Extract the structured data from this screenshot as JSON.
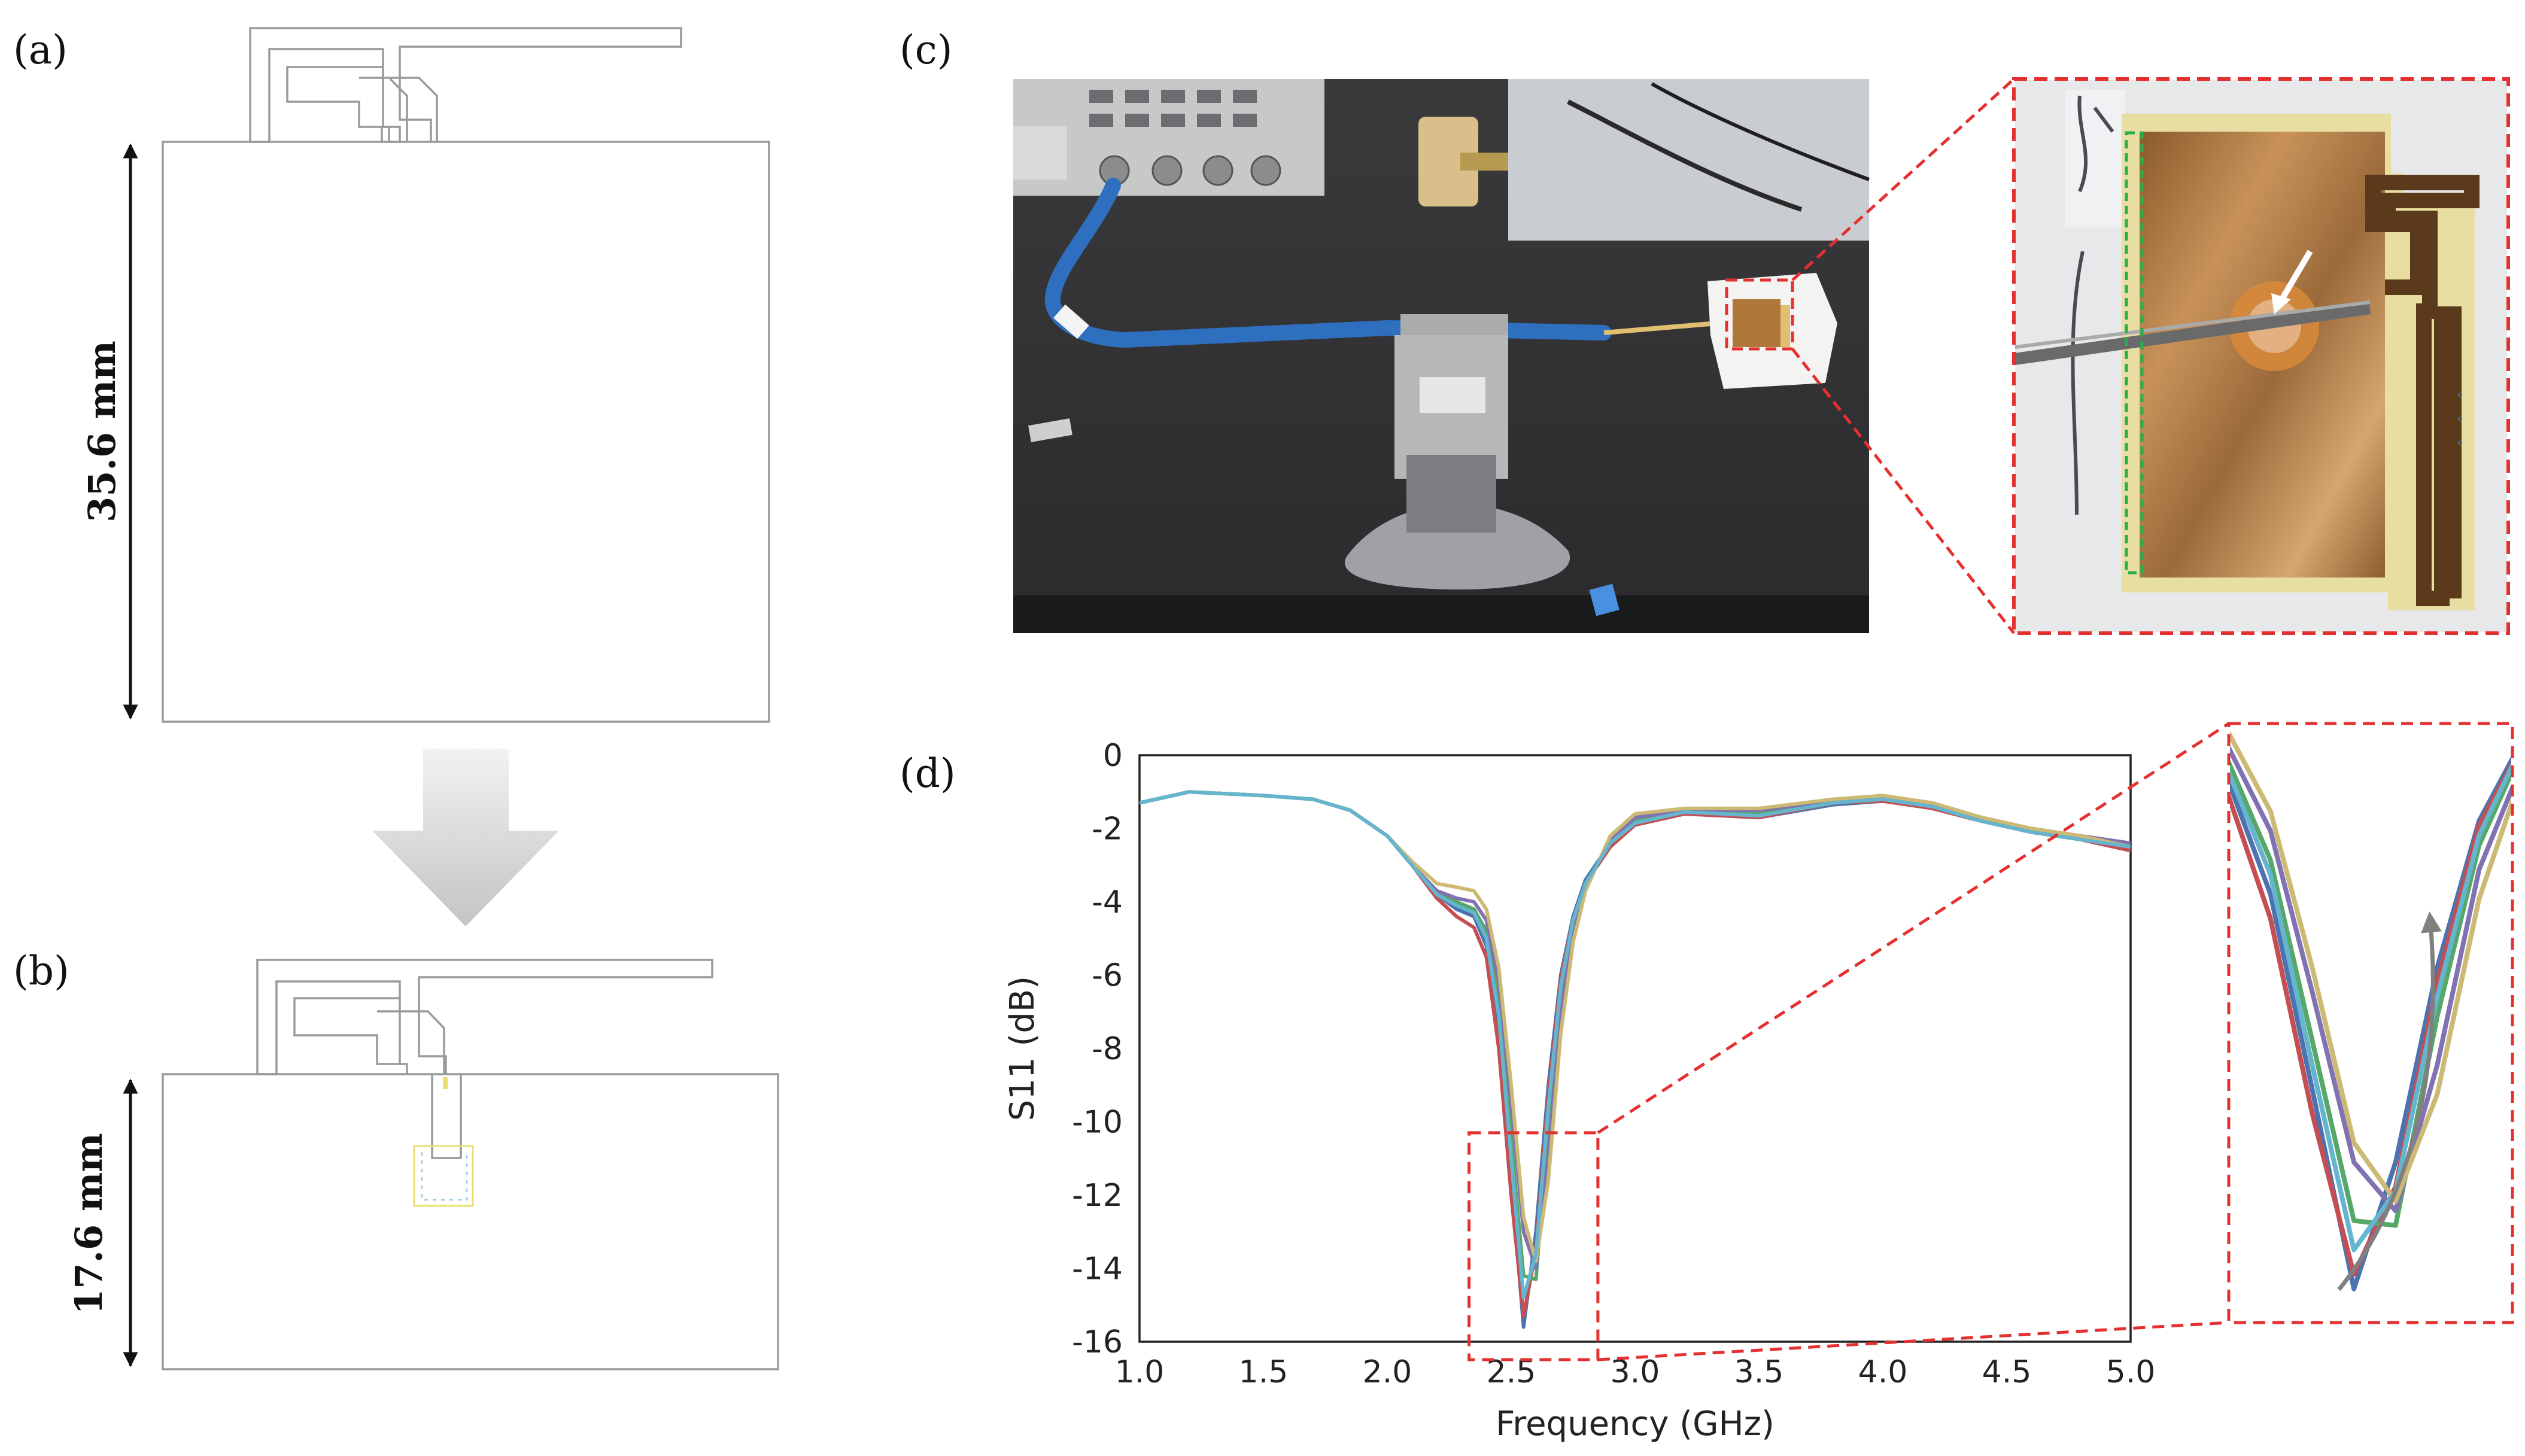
{
  "panels": {
    "a": {
      "label": "(a)",
      "dimension": "35.6 mm"
    },
    "b": {
      "label": "(b)",
      "dimension": "17.6 mm"
    },
    "c": {
      "label": "(c)"
    },
    "d": {
      "label": "(d)"
    }
  },
  "colors": {
    "series": [
      "#4c72b0",
      "#c44e52",
      "#55a868",
      "#8172b2",
      "#ccb974",
      "#64b5cd"
    ],
    "zoom_box": "#e53030",
    "arrow": "#808080"
  },
  "chart_data": {
    "type": "line",
    "title": "",
    "xlabel": "Frequency (GHz)",
    "ylabel": "S11 (dB)",
    "xlim": [
      1.0,
      5.0
    ],
    "ylim": [
      -16,
      0
    ],
    "xticks": [
      "1.0",
      "1.5",
      "2.0",
      "2.5",
      "3.0",
      "3.5",
      "4.0",
      "4.5",
      "5.0"
    ],
    "yticks": [
      "0",
      "-2",
      "-4",
      "-6",
      "-8",
      "-10",
      "-12",
      "-14",
      "-16"
    ],
    "grid": false,
    "legend": "none",
    "zoom_region": {
      "x": [
        2.33,
        2.85
      ],
      "y": [
        -16,
        -10.3
      ]
    },
    "x": [
      1.0,
      1.2,
      1.5,
      1.7,
      1.85,
      2.0,
      2.1,
      2.2,
      2.28,
      2.35,
      2.4,
      2.45,
      2.5,
      2.55,
      2.6,
      2.65,
      2.7,
      2.75,
      2.8,
      2.9,
      3.0,
      3.2,
      3.5,
      3.8,
      4.0,
      4.2,
      4.4,
      4.6,
      4.8,
      5.0
    ],
    "series": [
      {
        "values": [
          -1.3,
          -1.0,
          -1.1,
          -1.2,
          -1.5,
          -2.2,
          -3.0,
          -3.8,
          -4.2,
          -4.4,
          -5.2,
          -7.5,
          -11.5,
          -15.6,
          -13.0,
          -9.0,
          -6.0,
          -4.4,
          -3.4,
          -2.4,
          -1.9,
          -1.6,
          -1.7,
          -1.35,
          -1.25,
          -1.45,
          -1.8,
          -2.1,
          -2.3,
          -2.6
        ]
      },
      {
        "values": [
          -1.3,
          -1.0,
          -1.1,
          -1.2,
          -1.5,
          -2.2,
          -3.0,
          -3.9,
          -4.4,
          -4.7,
          -5.5,
          -8.0,
          -12.0,
          -15.3,
          -13.5,
          -9.3,
          -6.1,
          -4.5,
          -3.5,
          -2.5,
          -1.9,
          -1.6,
          -1.7,
          -1.3,
          -1.25,
          -1.45,
          -1.8,
          -2.1,
          -2.3,
          -2.6
        ]
      },
      {
        "values": [
          -1.3,
          -1.0,
          -1.1,
          -1.2,
          -1.5,
          -2.2,
          -3.0,
          -3.7,
          -4.0,
          -4.2,
          -4.8,
          -6.8,
          -10.5,
          -14.2,
          -14.3,
          -10.0,
          -6.5,
          -4.6,
          -3.5,
          -2.4,
          -1.8,
          -1.5,
          -1.6,
          -1.3,
          -1.2,
          -1.4,
          -1.8,
          -2.0,
          -2.2,
          -2.4
        ]
      },
      {
        "values": [
          -1.3,
          -1.0,
          -1.1,
          -1.2,
          -1.5,
          -2.2,
          -3.0,
          -3.7,
          -3.9,
          -4.0,
          -4.5,
          -6.2,
          -9.5,
          -13.0,
          -14.0,
          -11.0,
          -7.0,
          -4.9,
          -3.6,
          -2.3,
          -1.7,
          -1.5,
          -1.5,
          -1.25,
          -1.15,
          -1.35,
          -1.7,
          -2.0,
          -2.2,
          -2.4
        ]
      },
      {
        "values": [
          -1.3,
          -1.0,
          -1.1,
          -1.2,
          -1.5,
          -2.2,
          -2.9,
          -3.5,
          -3.6,
          -3.7,
          -4.2,
          -5.8,
          -9.0,
          -12.6,
          -13.8,
          -11.6,
          -7.6,
          -5.1,
          -3.7,
          -2.2,
          -1.6,
          -1.45,
          -1.45,
          -1.2,
          -1.1,
          -1.3,
          -1.7,
          -2.0,
          -2.2,
          -2.5
        ]
      },
      {
        "values": [
          -1.3,
          -1.0,
          -1.1,
          -1.2,
          -1.5,
          -2.2,
          -3.0,
          -3.8,
          -4.1,
          -4.3,
          -5.0,
          -7.1,
          -11.0,
          -14.8,
          -13.6,
          -9.6,
          -6.3,
          -4.5,
          -3.5,
          -2.4,
          -1.85,
          -1.55,
          -1.65,
          -1.3,
          -1.2,
          -1.4,
          -1.8,
          -2.1,
          -2.3,
          -2.5
        ]
      }
    ]
  }
}
